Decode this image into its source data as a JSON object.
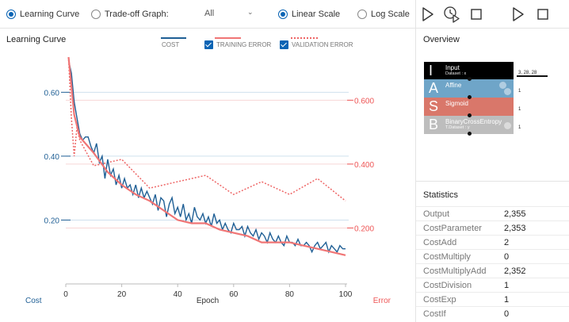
{
  "toolbar": {
    "learning_curve_label": "Learning Curve",
    "tradeoff_label": "Trade-off Graph:",
    "tradeoff_select_value": "All",
    "linear_scale_label": "Linear Scale",
    "log_scale_label": "Log Scale",
    "selected_view": "learning-curve",
    "selected_scale": "linear",
    "accent_color": "#0a64b4"
  },
  "chart": {
    "title": "Learning Curve",
    "legend": {
      "cost": "COST",
      "training_error": "TRAINING ERROR",
      "validation_error": "VALIDATION ERROR"
    },
    "left_axis_label": "Cost",
    "x_axis_label": "Epoch",
    "right_axis_label": "Error",
    "colors": {
      "cost": "#1f5f95",
      "training": "#f07575",
      "validation": "#ee6666",
      "left_axis": "#1f5f95",
      "right_axis": "#ee5555"
    }
  },
  "chart_data": {
    "type": "line",
    "xlabel": "Epoch",
    "xlim": [
      0,
      100
    ],
    "x_ticks": [
      "0",
      "20",
      "40",
      "60",
      "80",
      "100"
    ],
    "y_left": {
      "label": "Cost",
      "ticks": [
        "0.20",
        "0.40",
        "0.60"
      ],
      "lim": [
        0.0,
        0.72
      ]
    },
    "y_right": {
      "label": "Error",
      "ticks": [
        "0.200",
        "0.400",
        "0.600"
      ],
      "lim": [
        0.0,
        0.72
      ]
    },
    "series": [
      {
        "name": "COST",
        "axis": "left",
        "x": [
          1,
          2,
          3,
          4,
          5,
          6,
          7,
          8,
          9,
          10,
          11,
          12,
          13,
          14,
          15,
          16,
          17,
          18,
          19,
          20,
          21,
          22,
          23,
          24,
          25,
          26,
          27,
          28,
          29,
          30,
          31,
          32,
          33,
          34,
          35,
          36,
          37,
          38,
          39,
          40,
          41,
          42,
          43,
          44,
          45,
          46,
          47,
          48,
          49,
          50,
          51,
          52,
          53,
          54,
          55,
          56,
          57,
          58,
          59,
          60,
          61,
          62,
          63,
          64,
          65,
          66,
          67,
          68,
          69,
          70,
          71,
          72,
          73,
          74,
          75,
          76,
          77,
          78,
          79,
          80,
          81,
          82,
          83,
          84,
          85,
          86,
          87,
          88,
          89,
          90,
          91,
          92,
          93,
          94,
          95,
          96,
          97,
          98,
          99,
          100
        ],
        "values": [
          0.7,
          0.66,
          0.57,
          0.52,
          0.47,
          0.45,
          0.46,
          0.46,
          0.43,
          0.41,
          0.44,
          0.38,
          0.4,
          0.33,
          0.39,
          0.34,
          0.36,
          0.31,
          0.34,
          0.3,
          0.33,
          0.3,
          0.31,
          0.28,
          0.31,
          0.27,
          0.3,
          0.27,
          0.29,
          0.27,
          0.25,
          0.28,
          0.23,
          0.27,
          0.26,
          0.21,
          0.25,
          0.27,
          0.22,
          0.24,
          0.21,
          0.25,
          0.2,
          0.22,
          0.19,
          0.24,
          0.21,
          0.2,
          0.22,
          0.19,
          0.21,
          0.18,
          0.22,
          0.19,
          0.2,
          0.17,
          0.19,
          0.17,
          0.16,
          0.19,
          0.17,
          0.17,
          0.18,
          0.15,
          0.18,
          0.16,
          0.15,
          0.17,
          0.14,
          0.16,
          0.15,
          0.13,
          0.16,
          0.14,
          0.13,
          0.15,
          0.13,
          0.12,
          0.15,
          0.13,
          0.13,
          0.12,
          0.14,
          0.12,
          0.12,
          0.13,
          0.12,
          0.1,
          0.12,
          0.13,
          0.11,
          0.12,
          0.13,
          0.1,
          0.12,
          0.11,
          0.1,
          0.12,
          0.11,
          0.11
        ]
      },
      {
        "name": "TRAINING ERROR",
        "axis": "right",
        "x": [
          1,
          2,
          3,
          5,
          10,
          15,
          20,
          25,
          30,
          35,
          40,
          45,
          50,
          55,
          60,
          65,
          70,
          75,
          80,
          85,
          90,
          95,
          100
        ],
        "values": [
          0.71,
          0.62,
          0.53,
          0.46,
          0.41,
          0.35,
          0.31,
          0.28,
          0.26,
          0.23,
          0.2,
          0.19,
          0.19,
          0.17,
          0.16,
          0.15,
          0.13,
          0.13,
          0.13,
          0.12,
          0.11,
          0.1,
          0.09
        ]
      },
      {
        "name": "VALIDATION ERROR",
        "axis": "right",
        "x": [
          1,
          2,
          3,
          4,
          5,
          10,
          20,
          30,
          40,
          50,
          60,
          70,
          80,
          90,
          100
        ],
        "values": [
          0.71,
          0.52,
          0.4,
          0.49,
          0.45,
          0.37,
          0.39,
          0.3,
          0.32,
          0.34,
          0.28,
          0.32,
          0.28,
          0.33,
          0.26
        ]
      }
    ]
  },
  "overview": {
    "title": "Overview",
    "nodes": [
      {
        "letter": "I",
        "name": "Input",
        "sub": "Dataset : x",
        "color": "#000000",
        "dim": "3, 28, 28"
      },
      {
        "letter": "A",
        "name": "Affine",
        "sub": "",
        "color": "#6fa5c8",
        "dim": "1"
      },
      {
        "letter": "S",
        "name": "Sigmoid",
        "sub": "",
        "color": "#d9776a",
        "dim": "1"
      },
      {
        "letter": "B",
        "name": "BinaryCrossEntropy",
        "sub": "T.Dataset : y",
        "color": "#bdbdbd",
        "dim": "1"
      }
    ]
  },
  "statistics": {
    "title": "Statistics",
    "rows": [
      {
        "key": "Output",
        "value": "2,355"
      },
      {
        "key": "CostParameter",
        "value": "2,353"
      },
      {
        "key": "CostAdd",
        "value": "2"
      },
      {
        "key": "CostMultiply",
        "value": "0"
      },
      {
        "key": "CostMultiplyAdd",
        "value": "2,352"
      },
      {
        "key": "CostDivision",
        "value": "1"
      },
      {
        "key": "CostExp",
        "value": "1"
      },
      {
        "key": "CostIf",
        "value": "0"
      }
    ]
  }
}
